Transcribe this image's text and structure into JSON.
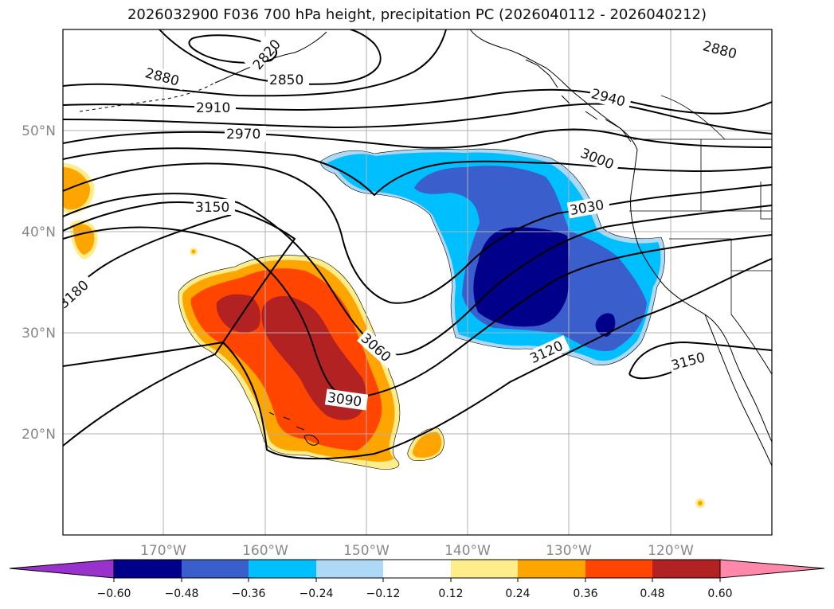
{
  "title": "2026032900 F036 700 hPa height, precipitation PC (2026040112 - 2026040212)",
  "map": {
    "lon_ticks": [
      "170°W",
      "160°W",
      "150°W",
      "140°W",
      "130°W",
      "120°W"
    ],
    "lat_ticks": [
      "50°N",
      "40°N",
      "30°N",
      "20°N"
    ],
    "contour_labels": [
      "2820",
      "2850",
      "2880",
      "2910",
      "2970",
      "3000",
      "2940",
      "2880",
      "3030",
      "3150",
      "3180",
      "3060",
      "3090",
      "3120",
      "3150"
    ]
  },
  "colorbar": {
    "ticks": [
      "−0.60",
      "−0.48",
      "−0.36",
      "−0.24",
      "−0.12",
      "0.12",
      "0.24",
      "0.36",
      "0.48",
      "0.60"
    ],
    "colors": [
      "#9932cc",
      "#00008b",
      "#3a5fcd",
      "#00bfff",
      "#add8f6",
      "#ffffff",
      "#ffec8b",
      "#ffa500",
      "#ff4500",
      "#b22222",
      "#ff88aa"
    ]
  },
  "colors": {
    "neg_strong": "#00008b",
    "neg_mid": "#3a5fcd",
    "neg_light": "#00bfff",
    "neg_faint": "#add8f6",
    "pos_faint": "#ffec8b",
    "pos_light": "#ffa500",
    "pos_mid": "#ff4500",
    "pos_strong": "#b22222",
    "grid": "#b0b0b0"
  }
}
